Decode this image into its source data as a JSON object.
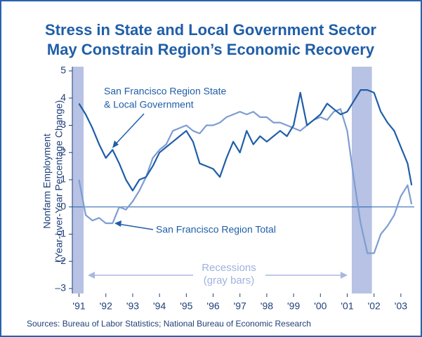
{
  "chart_data": {
    "type": "line",
    "title": [
      "Stress in State and Local Government Sector",
      "May Constrain Region’s Economic Recovery"
    ],
    "ylabel": [
      "Nonfarm Employment",
      "(Year-over-Year Percentage Change)"
    ],
    "source": "Sources: Bureau of Labor Statistics; National Bureau of Economic Research",
    "annotations": {
      "state_local": [
        "San Francisco Region State",
        "& Local Government"
      ],
      "total": "San Francisco Region Total",
      "recessions": [
        "Recessions",
        "(gray bars)"
      ]
    },
    "x": [
      1991,
      1991.25,
      1991.5,
      1991.75,
      1992,
      1992.25,
      1992.5,
      1992.75,
      1993,
      1993.25,
      1993.5,
      1993.75,
      1994,
      1994.25,
      1994.5,
      1994.75,
      1995,
      1995.25,
      1995.5,
      1995.75,
      1996,
      1996.25,
      1996.5,
      1996.75,
      1997,
      1997.25,
      1997.5,
      1997.75,
      1998,
      1998.25,
      1998.5,
      1998.75,
      1999,
      1999.25,
      1999.5,
      1999.75,
      2000,
      2000.25,
      2000.5,
      2000.75,
      2001,
      2001.25,
      2001.5,
      2001.75,
      2002,
      2002.25,
      2002.5,
      2002.75,
      2003,
      2003.25,
      2003.4
    ],
    "series": [
      {
        "name": "San Francisco Region State & Local Government",
        "color": "#1f5ea8",
        "values": [
          3.8,
          3.4,
          2.9,
          2.3,
          1.8,
          2.1,
          1.6,
          1.0,
          0.6,
          1.0,
          1.1,
          1.5,
          2.0,
          2.2,
          2.4,
          2.6,
          2.8,
          2.4,
          1.6,
          1.5,
          1.4,
          1.1,
          1.8,
          2.4,
          2.0,
          2.8,
          2.3,
          2.6,
          2.4,
          2.6,
          2.8,
          2.6,
          3.0,
          4.2,
          3.0,
          3.2,
          3.4,
          3.8,
          3.6,
          3.4,
          3.5,
          3.9,
          4.3,
          4.3,
          4.2,
          3.5,
          3.1,
          2.8,
          2.2,
          1.6,
          0.8
        ]
      },
      {
        "name": "San Francisco Region Total",
        "color": "#7d9dd2",
        "values": [
          1.0,
          -0.3,
          -0.5,
          -0.4,
          -0.6,
          -0.6,
          0.0,
          -0.1,
          0.2,
          0.6,
          1.1,
          1.8,
          2.1,
          2.3,
          2.8,
          2.9,
          3.0,
          2.8,
          2.7,
          3.0,
          3.0,
          3.1,
          3.3,
          3.4,
          3.5,
          3.4,
          3.5,
          3.3,
          3.3,
          3.1,
          3.1,
          3.0,
          2.9,
          2.8,
          3.0,
          3.2,
          3.3,
          3.2,
          3.5,
          3.6,
          2.8,
          1.0,
          -0.6,
          -1.7,
          -1.7,
          -1.0,
          -0.7,
          -0.3,
          0.4,
          0.8,
          0.1
        ]
      }
    ],
    "recessions": [
      [
        1990.58,
        1991.17
      ],
      [
        2001.17,
        2001.92
      ]
    ],
    "recession_color": "#b7c2e4",
    "xlim": [
      1990.75,
      2003.5
    ],
    "xticks": [
      {
        "value": 1991,
        "label": "'91"
      },
      {
        "value": 1992,
        "label": "'92"
      },
      {
        "value": 1993,
        "label": "'93"
      },
      {
        "value": 1994,
        "label": "'94"
      },
      {
        "value": 1995,
        "label": "'95"
      },
      {
        "value": 1996,
        "label": "'96"
      },
      {
        "value": 1997,
        "label": "'97"
      },
      {
        "value": 1998,
        "label": "'98"
      },
      {
        "value": 1999,
        "label": "'99"
      },
      {
        "value": 2000,
        "label": "'00"
      },
      {
        "value": 2001,
        "label": "'01"
      },
      {
        "value": 2002,
        "label": "'02"
      },
      {
        "value": 2003,
        "label": "'03"
      }
    ],
    "ylim": [
      -3,
      5
    ],
    "yticks": [
      {
        "value": -3,
        "label": "–3"
      },
      {
        "value": -2,
        "label": "–2"
      },
      {
        "value": -1,
        "label": "–1"
      },
      0,
      1,
      2,
      3,
      4,
      5
    ],
    "grid": false
  }
}
